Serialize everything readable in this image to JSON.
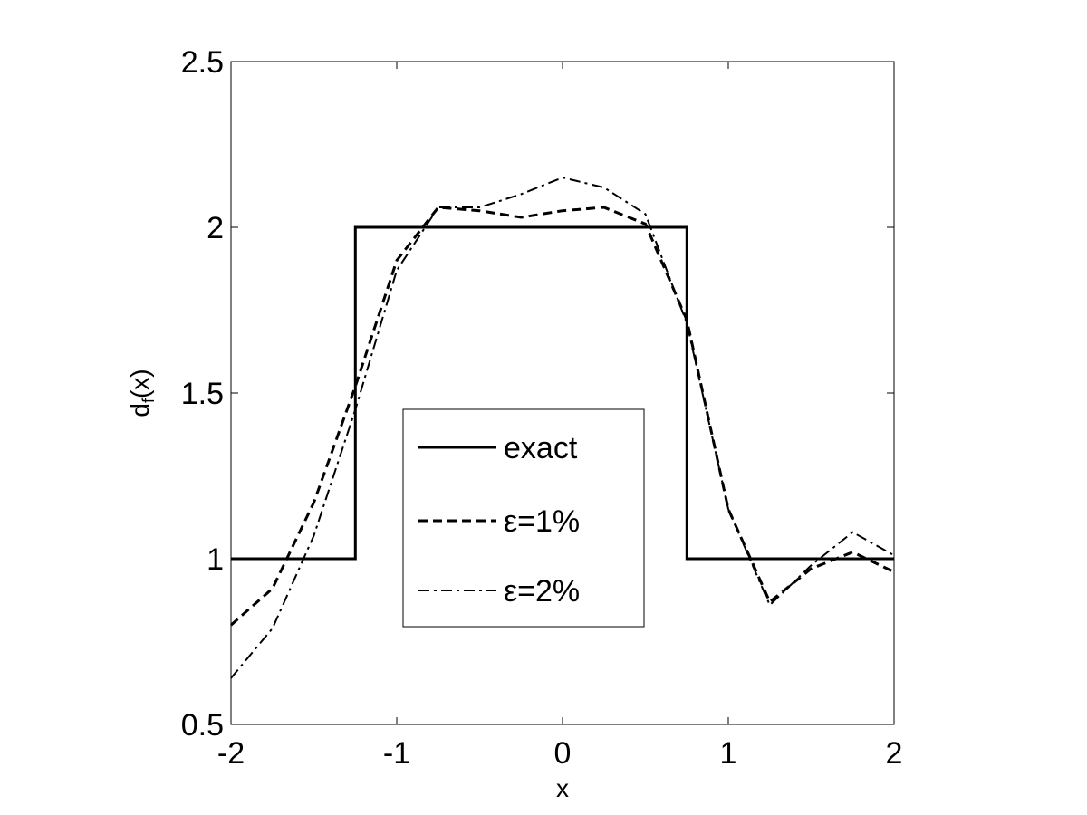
{
  "chart_data": {
    "type": "line",
    "xlabel": "x",
    "ylabel": "d",
    "ylabel_subscript": "f",
    "ylabel_suffix": "(x)",
    "xlim": [
      -2,
      2
    ],
    "ylim": [
      0.5,
      2.5
    ],
    "xticks": [
      -2,
      -1,
      0,
      1,
      2
    ],
    "xtick_labels": [
      "-2",
      "-1",
      "0",
      "1",
      "2"
    ],
    "yticks": [
      0.5,
      1,
      1.5,
      2,
      2.5
    ],
    "ytick_labels": [
      "0.5",
      "1",
      "1.5",
      "2",
      "2.5"
    ],
    "grid": false,
    "legend_position": "center",
    "series": [
      {
        "name": "exact",
        "style": "solid",
        "color": "#000000",
        "x": [
          -2,
          -1.25,
          -1.25,
          0.75,
          0.75,
          2
        ],
        "y": [
          1,
          1,
          2,
          2,
          1,
          1
        ]
      },
      {
        "name": "ε=1%",
        "style": "dashed",
        "color": "#000000",
        "x": [
          -2,
          -1.75,
          -1.5,
          -1.25,
          -1,
          -0.75,
          -0.5,
          -0.25,
          0,
          0.25,
          0.5,
          0.75,
          1,
          1.25,
          1.5,
          1.75,
          2
        ],
        "y": [
          0.8,
          0.91,
          1.17,
          1.52,
          1.9,
          2.06,
          2.05,
          2.03,
          2.05,
          2.06,
          2.01,
          1.72,
          1.15,
          0.87,
          0.97,
          1.02,
          0.96
        ]
      },
      {
        "name": "ε=2%",
        "style": "dashdot",
        "color": "#000000",
        "x": [
          -2,
          -1.75,
          -1.5,
          -1.25,
          -1,
          -0.75,
          -0.5,
          -0.25,
          0,
          0.25,
          0.5,
          0.75,
          1,
          1.25,
          1.5,
          1.75,
          2
        ],
        "y": [
          0.64,
          0.79,
          1.07,
          1.45,
          1.87,
          2.06,
          2.06,
          2.1,
          2.15,
          2.12,
          2.04,
          1.71,
          1.15,
          0.86,
          0.98,
          1.08,
          1.01
        ]
      }
    ]
  }
}
